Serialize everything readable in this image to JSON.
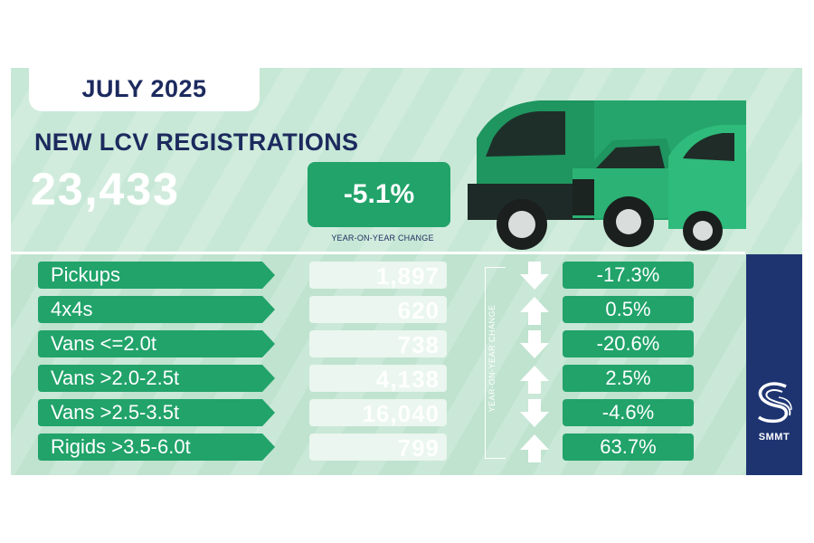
{
  "header": {
    "month": "JULY 2025",
    "title": "NEW LCV REGISTRATIONS",
    "total": "23,433",
    "yoy_change": "-5.1%",
    "yoy_caption": "YEAR-ON-YEAR CHANGE"
  },
  "side_caption": "YEAR-ON-YEAR CHANGE",
  "brand": {
    "name": "SMMT",
    "color": "#1e3471"
  },
  "colors": {
    "accent": "#21a36a",
    "background": "#bfe3cf",
    "navy": "#1c2a5e"
  },
  "rows": [
    {
      "label": "Pickups",
      "value": "1,897",
      "change": "-17.3%",
      "direction": "down"
    },
    {
      "label": "4x4s",
      "value": "620",
      "change": "0.5%",
      "direction": "up"
    },
    {
      "label": "Vans <=2.0t",
      "value": "738",
      "change": "-20.6%",
      "direction": "down"
    },
    {
      "label": "Vans >2.0-2.5t",
      "value": "4,138",
      "change": "2.5%",
      "direction": "up"
    },
    {
      "label": "Vans >2.5-3.5t",
      "value": "16,040",
      "change": "-4.6%",
      "direction": "down"
    },
    {
      "label": "Rigids >3.5-6.0t",
      "value": "799",
      "change": "63.7%",
      "direction": "up"
    }
  ]
}
